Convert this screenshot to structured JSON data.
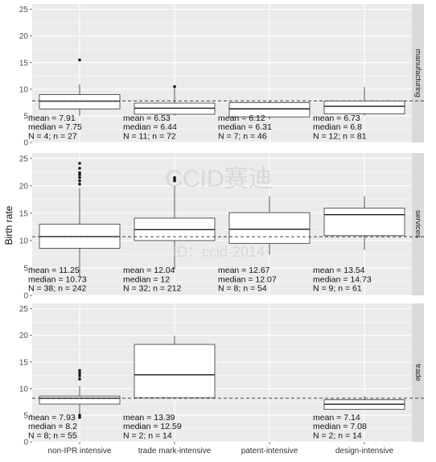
{
  "chart_data": {
    "type": "boxplot",
    "ylabel": "Birth rate",
    "categories": [
      "non-IPR intensive",
      "trade mark-intensive",
      "patent-intensive",
      "design-intensive"
    ],
    "ylim": [
      0,
      26
    ],
    "yticks": [
      0,
      5,
      10,
      15,
      20,
      25
    ],
    "grid": true,
    "colors": {
      "panel_bg": "#ebebeb",
      "grid": "#ffffff",
      "strip_bg": "#d9d9d9",
      "box_fill": "#ffffff",
      "line": "#333333",
      "tick_label": "#4d4d4d",
      "ref_line": "#444444"
    },
    "watermark": [
      "CCID赛迪",
      "ID：ccid-2014"
    ],
    "panels": [
      {
        "strip": "manufacturing",
        "reference_line": 7.8,
        "boxes": [
          {
            "category": "non-IPR intensive",
            "q1": 6.3,
            "median": 7.75,
            "q3": 9.0,
            "whisker_low": 5.0,
            "whisker_high": 10.9,
            "outliers": [
              15.5
            ],
            "annotation": [
              "mean = 7.91",
              "median = 7.75",
              "N = 4; n = 27"
            ]
          },
          {
            "category": "trade mark-intensive",
            "q1": 5.3,
            "median": 6.44,
            "q3": 7.4,
            "whisker_low": 5.0,
            "whisker_high": 10.4,
            "outliers": [
              10.5
            ],
            "annotation": [
              "mean = 6.53",
              "median = 6.44",
              "N = 11; n = 72"
            ]
          },
          {
            "category": "patent-intensive",
            "q1": 4.8,
            "median": 6.31,
            "q3": 7.5,
            "whisker_low": 4.3,
            "whisker_high": 7.9,
            "outliers": [],
            "annotation": [
              "mean = 6.12",
              "median = 6.31",
              "N = 7; n = 46"
            ]
          },
          {
            "category": "design-intensive",
            "q1": 5.4,
            "median": 6.8,
            "q3": 7.8,
            "whisker_low": 5.0,
            "whisker_high": 10.4,
            "outliers": [],
            "annotation": [
              "mean = 6.73",
              "median = 6.8",
              "N = 12; n = 81"
            ]
          }
        ]
      },
      {
        "strip": "services",
        "reference_line": 10.7,
        "boxes": [
          {
            "category": "non-IPR intensive",
            "q1": 8.6,
            "median": 10.73,
            "q3": 13.0,
            "whisker_low": 3.3,
            "whisker_high": 19.6,
            "outliers": [
              20.3,
              20.9,
              21.5,
              22.0,
              22.4,
              23.2,
              24.1
            ],
            "annotation": [
              "mean = 11.25",
              "median = 10.73",
              "N = 38; n = 242"
            ]
          },
          {
            "category": "trade mark-intensive",
            "q1": 10.0,
            "median": 12.0,
            "q3": 14.1,
            "whisker_low": 4.7,
            "whisker_high": 20.1,
            "outliers": [
              20.9,
              21.2,
              21.5
            ],
            "annotation": [
              "mean = 12.04",
              "median = 12",
              "N = 32; n = 212"
            ]
          },
          {
            "category": "patent-intensive",
            "q1": 9.5,
            "median": 12.07,
            "q3": 15.1,
            "whisker_low": 7.4,
            "whisker_high": 18.1,
            "outliers": [],
            "annotation": [
              "mean = 12.67",
              "median = 12.07",
              "N = 8; n = 54"
            ]
          },
          {
            "category": "design-intensive",
            "q1": 10.9,
            "median": 14.73,
            "q3": 15.9,
            "whisker_low": 8.3,
            "whisker_high": 18.1,
            "outliers": [],
            "annotation": [
              "mean = 13.54",
              "median = 14.73",
              "N = 9; n = 61"
            ]
          }
        ]
      },
      {
        "strip": "trade",
        "reference_line": 8.2,
        "boxes": [
          {
            "category": "non-IPR intensive",
            "q1": 7.1,
            "median": 8.2,
            "q3": 8.6,
            "whisker_low": 5.0,
            "whisker_high": 10.5,
            "outliers": [
              11.8,
              12.4,
              12.9,
              13.4,
              5.0,
              4.6
            ],
            "annotation": [
              "mean = 7.93",
              "median = 8.2",
              "N = 8; n = 55"
            ]
          },
          {
            "category": "trade mark-intensive",
            "q1": 8.3,
            "median": 12.59,
            "q3": 18.3,
            "whisker_low": 8.3,
            "whisker_high": 19.9,
            "outliers": [],
            "annotation": [
              "mean = 13.39",
              "median = 12.59",
              "N = 2; n = 14"
            ]
          },
          {
            "category": "design-intensive",
            "q1": 6.1,
            "median": 7.08,
            "q3": 7.9,
            "whisker_low": 6.1,
            "whisker_high": 8.6,
            "outliers": [],
            "annotation": [
              "mean = 7.14",
              "median = 7.08",
              "N = 2; n = 14"
            ]
          }
        ]
      }
    ]
  }
}
